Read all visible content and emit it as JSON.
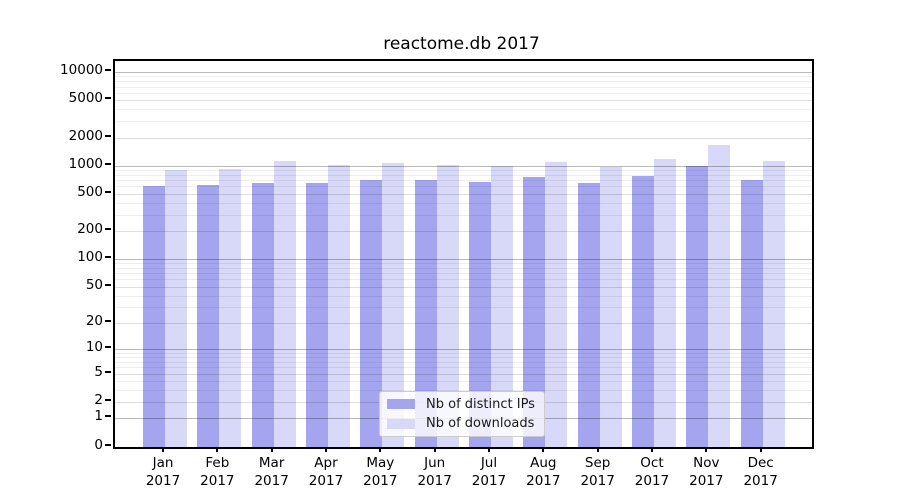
{
  "chart_data": {
    "type": "bar",
    "title": "reactome.db 2017",
    "categories": [
      "Jan",
      "Feb",
      "Mar",
      "Apr",
      "May",
      "Jun",
      "Jul",
      "Aug",
      "Sep",
      "Oct",
      "Nov",
      "Dec"
    ],
    "category_year": "2017",
    "series": [
      {
        "name": "Nb of distinct IPs",
        "color": "#a4a4ef",
        "values": [
          600,
          615,
          655,
          645,
          700,
          695,
          670,
          755,
          660,
          775,
          1000,
          705
        ]
      },
      {
        "name": "Nb of downloads",
        "color": "#d8d8f8",
        "values": [
          895,
          930,
          1120,
          1005,
          1055,
          1020,
          985,
          1095,
          960,
          1180,
          1660,
          1110
        ]
      }
    ],
    "xlabel": "",
    "ylabel": "",
    "y_ticks": [
      0,
      1,
      2,
      5,
      10,
      20,
      50,
      100,
      200,
      500,
      1000,
      2000,
      5000,
      10000
    ],
    "y_minor_tick_pattern": [
      3,
      4,
      6,
      7,
      8,
      9
    ],
    "y_scale": "log10(value+1)",
    "ylim": [
      0,
      13000
    ],
    "grid": true,
    "frame_color": "#000000",
    "background_color": "#ffffff",
    "legend_position": "inside-bottom-center"
  }
}
